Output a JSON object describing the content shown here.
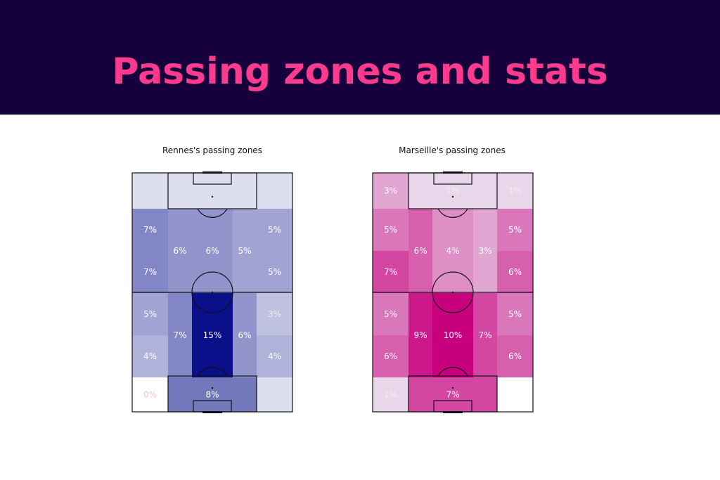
{
  "header": {
    "title": "Passing zones and stats",
    "background": "#16013d",
    "title_color": "#fc3b8e"
  },
  "chart_data": [
    {
      "type": "heatmap",
      "title": "Rennes's passing zones",
      "base_color": "#0a0f8a",
      "zones": [
        {
          "id": "top-left",
          "value": 1,
          "label": ""
        },
        {
          "id": "top-center",
          "value": 1,
          "label": ""
        },
        {
          "id": "top-right",
          "value": 1,
          "label": ""
        },
        {
          "id": "r2-left",
          "value": 7,
          "label": "7%"
        },
        {
          "id": "r2-right",
          "value": 5,
          "label": "5%"
        },
        {
          "id": "r3-left",
          "value": 7,
          "label": "7%"
        },
        {
          "id": "r3-right",
          "value": 5,
          "label": "5%"
        },
        {
          "id": "upper-mid-left",
          "value": 6,
          "label": "6%"
        },
        {
          "id": "upper-mid-center",
          "value": 6,
          "label": "6%"
        },
        {
          "id": "upper-mid-right",
          "value": 5,
          "label": "5%"
        },
        {
          "id": "r4-left",
          "value": 5,
          "label": "5%"
        },
        {
          "id": "r4-right",
          "value": 3,
          "label": "3%"
        },
        {
          "id": "r5-left",
          "value": 4,
          "label": "4%"
        },
        {
          "id": "r5-right",
          "value": 4,
          "label": "4%"
        },
        {
          "id": "lower-mid-left",
          "value": 7,
          "label": "7%"
        },
        {
          "id": "lower-mid-center",
          "value": 15,
          "label": "15%"
        },
        {
          "id": "lower-mid-right",
          "value": 6,
          "label": "6%"
        },
        {
          "id": "bottom-left",
          "value": 0,
          "label": "0%"
        },
        {
          "id": "bottom-center",
          "value": 8,
          "label": "8%"
        },
        {
          "id": "bottom-right",
          "value": 1,
          "label": ""
        }
      ]
    },
    {
      "type": "heatmap",
      "title": "Marseille's passing zones",
      "base_color": "#c8007e",
      "zones": [
        {
          "id": "top-left",
          "value": 3,
          "label": "3%"
        },
        {
          "id": "top-center",
          "value": 1,
          "label": "1%"
        },
        {
          "id": "top-right",
          "value": 1,
          "label": "1%"
        },
        {
          "id": "r2-left",
          "value": 5,
          "label": "5%"
        },
        {
          "id": "r2-right",
          "value": 5,
          "label": "5%"
        },
        {
          "id": "r3-left",
          "value": 7,
          "label": "7%"
        },
        {
          "id": "r3-right",
          "value": 6,
          "label": "6%"
        },
        {
          "id": "upper-mid-left",
          "value": 6,
          "label": "6%"
        },
        {
          "id": "upper-mid-center",
          "value": 4,
          "label": "4%"
        },
        {
          "id": "upper-mid-right",
          "value": 3,
          "label": "3%"
        },
        {
          "id": "r4-left",
          "value": 5,
          "label": "5%"
        },
        {
          "id": "r4-right",
          "value": 5,
          "label": "5%"
        },
        {
          "id": "r5-left",
          "value": 6,
          "label": "6%"
        },
        {
          "id": "r5-right",
          "value": 6,
          "label": "6%"
        },
        {
          "id": "lower-mid-left",
          "value": 9,
          "label": "9%"
        },
        {
          "id": "lower-mid-center",
          "value": 10,
          "label": "10%"
        },
        {
          "id": "lower-mid-right",
          "value": 7,
          "label": "7%"
        },
        {
          "id": "bottom-left",
          "value": 1,
          "label": "1%"
        },
        {
          "id": "bottom-center",
          "value": 7,
          "label": "7%"
        },
        {
          "id": "bottom-right",
          "value": 0,
          "label": ""
        }
      ]
    }
  ]
}
